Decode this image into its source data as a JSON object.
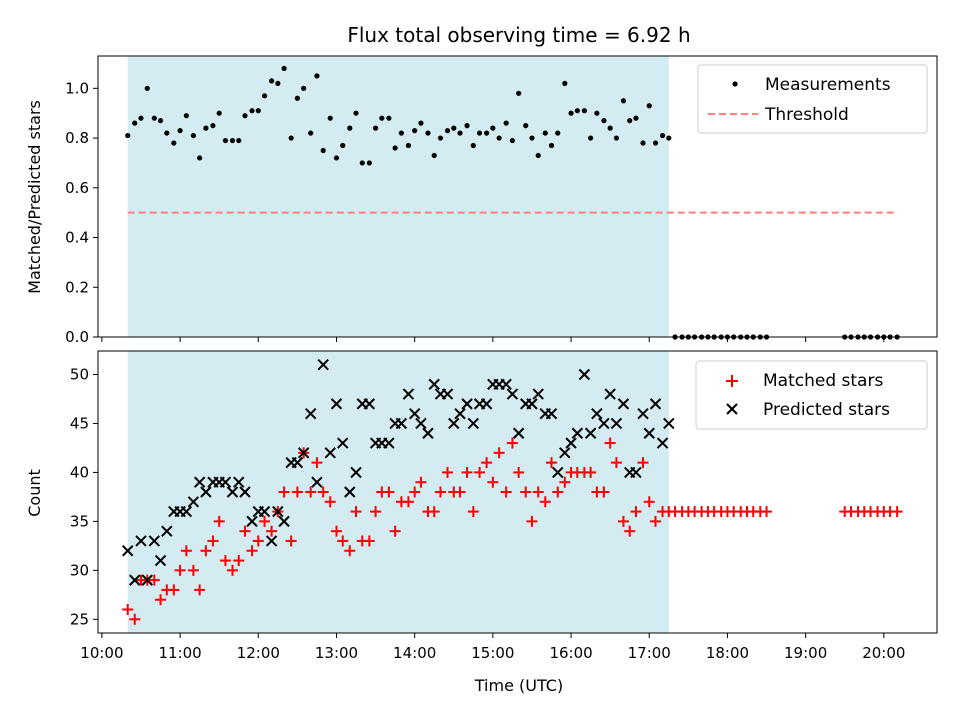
{
  "chart_data": [
    {
      "type": "scatter",
      "title": "Flux total observing time = 6.92 h",
      "xlabel": "",
      "ylabel": "Matched/Predicted stars",
      "ylim": [
        0,
        1.13
      ],
      "yticks": [
        "0.0",
        "0.2",
        "0.4",
        "0.6",
        "0.8",
        "1.0"
      ],
      "xlim_hours": [
        9.95,
        20.68
      ],
      "shaded_span_hours": [
        10.33,
        17.25
      ],
      "shade_color": "#d4ebf1",
      "legend": "top-right",
      "threshold": {
        "name": "Threshold",
        "y": 0.5,
        "x_range_hours": [
          10.33,
          20.15
        ],
        "color": "#ff7f7f"
      },
      "series": [
        {
          "name": "Measurements",
          "color": "#000000",
          "x_hours": [
            10.33,
            10.42,
            10.5,
            10.58,
            10.67,
            10.75,
            10.83,
            10.92,
            11.0,
            11.08,
            11.17,
            11.25,
            11.33,
            11.42,
            11.5,
            11.58,
            11.67,
            11.75,
            11.83,
            11.92,
            12.0,
            12.08,
            12.17,
            12.25,
            12.33,
            12.42,
            12.5,
            12.58,
            12.67,
            12.75,
            12.83,
            12.92,
            13.0,
            13.08,
            13.17,
            13.25,
            13.33,
            13.42,
            13.5,
            13.58,
            13.67,
            13.75,
            13.83,
            13.92,
            14.0,
            14.08,
            14.17,
            14.25,
            14.33,
            14.42,
            14.5,
            14.58,
            14.67,
            14.75,
            14.83,
            14.92,
            15.0,
            15.08,
            15.17,
            15.25,
            15.33,
            15.42,
            15.5,
            15.58,
            15.67,
            15.75,
            15.83,
            15.92,
            16.0,
            16.08,
            16.17,
            16.25,
            16.33,
            16.42,
            16.5,
            16.58,
            16.67,
            16.75,
            16.83,
            16.92,
            17.0,
            17.08,
            17.17,
            17.25,
            17.33,
            17.42,
            17.5,
            17.58,
            17.67,
            17.75,
            17.83,
            17.92,
            18.0,
            18.08,
            18.17,
            18.25,
            18.33,
            18.42,
            18.5,
            19.5,
            19.58,
            19.67,
            19.75,
            19.83,
            19.92,
            20.0,
            20.08,
            20.17
          ],
          "y": [
            0.81,
            0.86,
            0.88,
            1.0,
            0.88,
            0.87,
            0.82,
            0.78,
            0.83,
            0.89,
            0.81,
            0.72,
            0.84,
            0.85,
            0.9,
            0.79,
            0.79,
            0.79,
            0.89,
            0.91,
            0.91,
            0.97,
            1.03,
            1.02,
            1.08,
            0.8,
            0.96,
            1.0,
            0.82,
            1.05,
            0.75,
            0.88,
            0.72,
            0.77,
            0.84,
            0.9,
            0.7,
            0.7,
            0.84,
            0.88,
            0.88,
            0.76,
            0.82,
            0.77,
            0.83,
            0.86,
            0.82,
            0.73,
            0.8,
            0.83,
            0.84,
            0.82,
            0.85,
            0.77,
            0.82,
            0.82,
            0.84,
            0.8,
            0.86,
            0.79,
            0.98,
            0.85,
            0.8,
            0.73,
            0.82,
            0.77,
            0.82,
            1.02,
            0.9,
            0.91,
            0.91,
            0.8,
            0.9,
            0.87,
            0.84,
            0.8,
            0.95,
            0.87,
            0.88,
            0.78,
            0.93,
            0.78,
            0.81,
            0.8,
            0.0,
            0.0,
            0.0,
            0.0,
            0.0,
            0.0,
            0.0,
            0.0,
            0.0,
            0.0,
            0.0,
            0.0,
            0.0,
            0.0,
            0.0,
            0.0,
            0.0,
            0.0,
            0.0,
            0.0,
            0.0,
            0.0,
            0.0,
            0.0
          ]
        }
      ]
    },
    {
      "type": "scatter",
      "xlabel": "Time (UTC)",
      "ylabel": "Count",
      "ylim": [
        23.6,
        52.4
      ],
      "yticks": [
        "25",
        "30",
        "35",
        "40",
        "45",
        "50"
      ],
      "xticks": [
        "10:00",
        "11:00",
        "12:00",
        "13:00",
        "14:00",
        "15:00",
        "16:00",
        "17:00",
        "18:00",
        "19:00",
        "20:00"
      ],
      "xlim_hours": [
        9.95,
        20.68
      ],
      "shaded_span_hours": [
        10.33,
        17.25
      ],
      "shade_color": "#d4ebf1",
      "legend": "top-right",
      "series": [
        {
          "name": "Matched stars",
          "marker": "plus",
          "color": "#ff0000",
          "x_hours": [
            10.33,
            10.42,
            10.5,
            10.58,
            10.67,
            10.75,
            10.83,
            10.92,
            11.0,
            11.08,
            11.17,
            11.25,
            11.33,
            11.42,
            11.5,
            11.58,
            11.67,
            11.75,
            11.83,
            11.92,
            12.0,
            12.08,
            12.17,
            12.25,
            12.33,
            12.42,
            12.5,
            12.58,
            12.67,
            12.75,
            12.83,
            12.92,
            13.0,
            13.08,
            13.17,
            13.25,
            13.33,
            13.42,
            13.5,
            13.58,
            13.67,
            13.75,
            13.83,
            13.92,
            14.0,
            14.08,
            14.17,
            14.25,
            14.33,
            14.42,
            14.5,
            14.58,
            14.67,
            14.75,
            14.83,
            14.92,
            15.0,
            15.08,
            15.17,
            15.25,
            15.33,
            15.42,
            15.5,
            15.58,
            15.67,
            15.75,
            15.83,
            15.92,
            16.0,
            16.08,
            16.17,
            16.25,
            16.33,
            16.42,
            16.5,
            16.58,
            16.67,
            16.75,
            16.83,
            16.92,
            17.0,
            17.08,
            17.17,
            17.25,
            17.33,
            17.42,
            17.5,
            17.58,
            17.67,
            17.75,
            17.83,
            17.92,
            18.0,
            18.08,
            18.17,
            18.25,
            18.33,
            18.42,
            18.5,
            19.5,
            19.58,
            19.67,
            19.75,
            19.83,
            19.92,
            20.0,
            20.08,
            20.17
          ],
          "y": [
            26,
            25,
            29,
            29,
            29,
            27,
            28,
            28,
            30,
            32,
            30,
            28,
            32,
            33,
            35,
            31,
            30,
            31,
            34,
            32,
            33,
            35,
            34,
            36,
            38,
            33,
            38,
            42,
            38,
            41,
            38,
            37,
            34,
            33,
            32,
            36,
            33,
            33,
            36,
            38,
            38,
            34,
            37,
            37,
            38,
            39,
            36,
            36,
            38,
            40,
            38,
            38,
            40,
            36,
            40,
            41,
            39,
            42,
            38,
            43,
            40,
            38,
            35,
            38,
            37,
            41,
            38,
            39,
            40,
            40,
            40,
            40,
            38,
            38,
            43,
            41,
            35,
            34,
            36,
            41,
            37,
            35,
            36,
            36,
            36,
            36,
            36,
            36,
            36,
            36,
            36,
            36,
            36,
            36,
            36,
            36,
            36,
            36,
            36,
            36,
            36,
            36,
            36,
            36,
            36,
            36,
            36,
            36
          ]
        },
        {
          "name": "Predicted stars",
          "marker": "x",
          "color": "#000000",
          "x_hours": [
            10.33,
            10.42,
            10.5,
            10.58,
            10.67,
            10.75,
            10.83,
            10.92,
            11.0,
            11.08,
            11.17,
            11.25,
            11.33,
            11.42,
            11.5,
            11.58,
            11.67,
            11.75,
            11.83,
            11.92,
            12.0,
            12.08,
            12.17,
            12.25,
            12.33,
            12.42,
            12.5,
            12.58,
            12.67,
            12.75,
            12.83,
            12.92,
            13.0,
            13.08,
            13.17,
            13.25,
            13.33,
            13.42,
            13.5,
            13.58,
            13.67,
            13.75,
            13.83,
            13.92,
            14.0,
            14.08,
            14.17,
            14.25,
            14.33,
            14.42,
            14.5,
            14.58,
            14.67,
            14.75,
            14.83,
            14.92,
            15.0,
            15.08,
            15.17,
            15.25,
            15.33,
            15.42,
            15.5,
            15.58,
            15.67,
            15.75,
            15.83,
            15.92,
            16.0,
            16.08,
            16.17,
            16.25,
            16.33,
            16.42,
            16.5,
            16.58,
            16.67,
            16.75,
            16.83,
            16.92,
            17.0,
            17.08,
            17.17,
            17.25
          ],
          "y": [
            32,
            29,
            33,
            29,
            33,
            31,
            34,
            36,
            36,
            36,
            37,
            39,
            38,
            39,
            39,
            39,
            38,
            39,
            38,
            35,
            36,
            36,
            33,
            36,
            35,
            41,
            41,
            42,
            46,
            39,
            51,
            42,
            47,
            43,
            38,
            40,
            47,
            47,
            43,
            43,
            43,
            45,
            45,
            48,
            46,
            45,
            44,
            49,
            48,
            48,
            45,
            46,
            47,
            45,
            47,
            47,
            49,
            49,
            49,
            48,
            44,
            47,
            47,
            48,
            46,
            46,
            40,
            42,
            43,
            44,
            50,
            44,
            46,
            45,
            48,
            45,
            47,
            40,
            40,
            46,
            44,
            47,
            43,
            45
          ]
        }
      ]
    }
  ]
}
